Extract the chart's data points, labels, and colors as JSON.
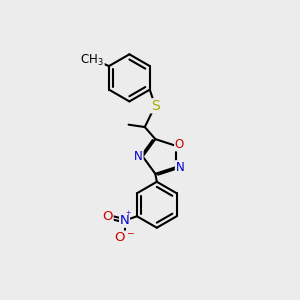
{
  "background_color": "#ececec",
  "bond_color": "#000000",
  "bond_width": 1.5,
  "atom_colors": {
    "N": "#0000cc",
    "O": "#cc0000",
    "S": "#aaaa00"
  },
  "font_size_atom": 8.5,
  "font_size_small": 7.5
}
